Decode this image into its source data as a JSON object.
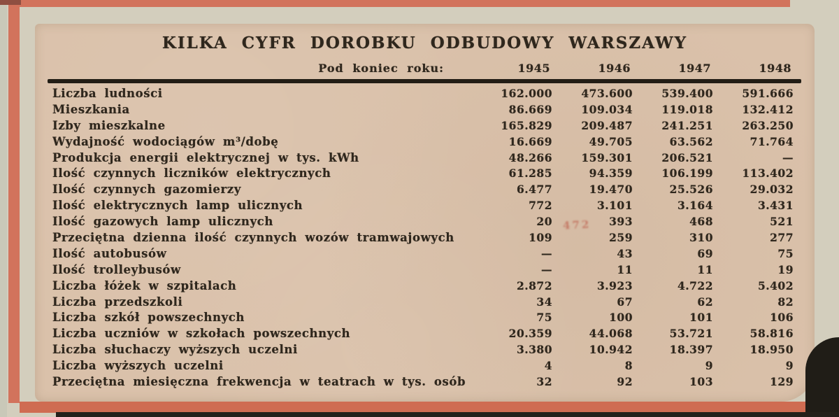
{
  "title": "KILKA CYFR DOROBKU ODBUDOWY WARSZAWY",
  "table": {
    "header_label": "Pod koniec roku:",
    "years": [
      "1945",
      "1946",
      "1947",
      "1948"
    ],
    "rows": [
      {
        "label": "Liczba ludności",
        "values": [
          "162.000",
          "473.600",
          "539.400",
          "591.666"
        ]
      },
      {
        "label": "Mieszkania",
        "values": [
          "86.669",
          "109.034",
          "119.018",
          "132.412"
        ]
      },
      {
        "label": "Izby mieszkalne",
        "values": [
          "165.829",
          "209.487",
          "241.251",
          "263.250"
        ]
      },
      {
        "label": "Wydajność wodociągów m³/dobę",
        "values": [
          "16.669",
          "49.705",
          "63.562",
          "71.764"
        ]
      },
      {
        "label": "Produkcja energii elektrycznej w tys. kWh",
        "values": [
          "48.266",
          "159.301",
          "206.521",
          "—"
        ]
      },
      {
        "label": "Ilość czynnych liczników elektrycznych",
        "values": [
          "61.285",
          "94.359",
          "106.199",
          "113.402"
        ]
      },
      {
        "label": "Ilość czynnych gazomierzy",
        "values": [
          "6.477",
          "19.470",
          "25.526",
          "29.032"
        ]
      },
      {
        "label": "Ilość elektrycznych lamp ulicznych",
        "values": [
          "772",
          "3.101",
          "3.164",
          "3.431"
        ]
      },
      {
        "label": "Ilość gazowych lamp ulicznych",
        "values": [
          "20",
          "393",
          "468",
          "521"
        ]
      },
      {
        "label": "Przeciętna dzienna ilość czynnych wozów tramwajowych",
        "values": [
          "109",
          "259",
          "310",
          "277"
        ]
      },
      {
        "label": "Ilość autobusów",
        "values": [
          "—",
          "43",
          "69",
          "75"
        ]
      },
      {
        "label": "Ilość trolleybusów",
        "values": [
          "—",
          "11",
          "11",
          "19"
        ]
      },
      {
        "label": "Liczba łóżek w szpitalach",
        "values": [
          "2.872",
          "3.923",
          "4.722",
          "5.402"
        ]
      },
      {
        "label": "Liczba przedszkoli",
        "values": [
          "34",
          "67",
          "62",
          "82"
        ]
      },
      {
        "label": "Liczba szkół powszechnych",
        "values": [
          "75",
          "100",
          "101",
          "106"
        ]
      },
      {
        "label": "Liczba uczniów w szkołach powszechnych",
        "values": [
          "20.359",
          "44.068",
          "53.721",
          "58.816"
        ]
      },
      {
        "label": "Liczba słuchaczy wyższych uczelni",
        "values": [
          "3.380",
          "10.942",
          "18.397",
          "18.950"
        ]
      },
      {
        "label": "Liczba wyższych uczelni",
        "values": [
          "4",
          "8",
          "9",
          "9"
        ]
      },
      {
        "label": "Przeciętna miesięczna frekwencja w teatrach w tys. osób",
        "values": [
          "32",
          "92",
          "103",
          "129"
        ]
      }
    ]
  },
  "annotation": {
    "red_mark": "472"
  },
  "colors": {
    "frame_red": "#d2735c",
    "paper": "#dac1aa",
    "background": "#d3cebd",
    "ink": "#2f271d",
    "mark_red": "#b43a2a"
  }
}
